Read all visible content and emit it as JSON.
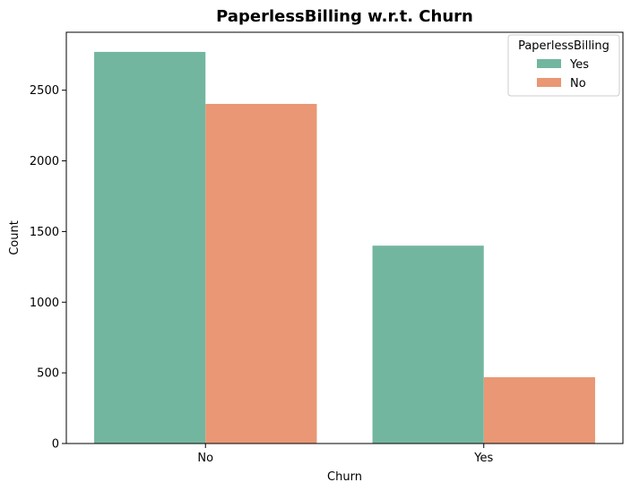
{
  "chart_data": {
    "type": "bar",
    "title": "PaperlessBilling w.r.t. Churn",
    "xlabel": "Churn",
    "ylabel": "Count",
    "categories": [
      "No",
      "Yes"
    ],
    "series": [
      {
        "name": "Yes",
        "values": [
          2771,
          1400
        ],
        "color": "#73b6a0"
      },
      {
        "name": "No",
        "values": [
          2403,
          469
        ],
        "color": "#e99774"
      }
    ],
    "ylim": [
      0,
      2910
    ],
    "yticks": [
      0,
      500,
      1000,
      1500,
      2000,
      2500
    ],
    "legend": {
      "title": "PaperlessBilling",
      "placement": "top-right"
    },
    "grid": false
  }
}
